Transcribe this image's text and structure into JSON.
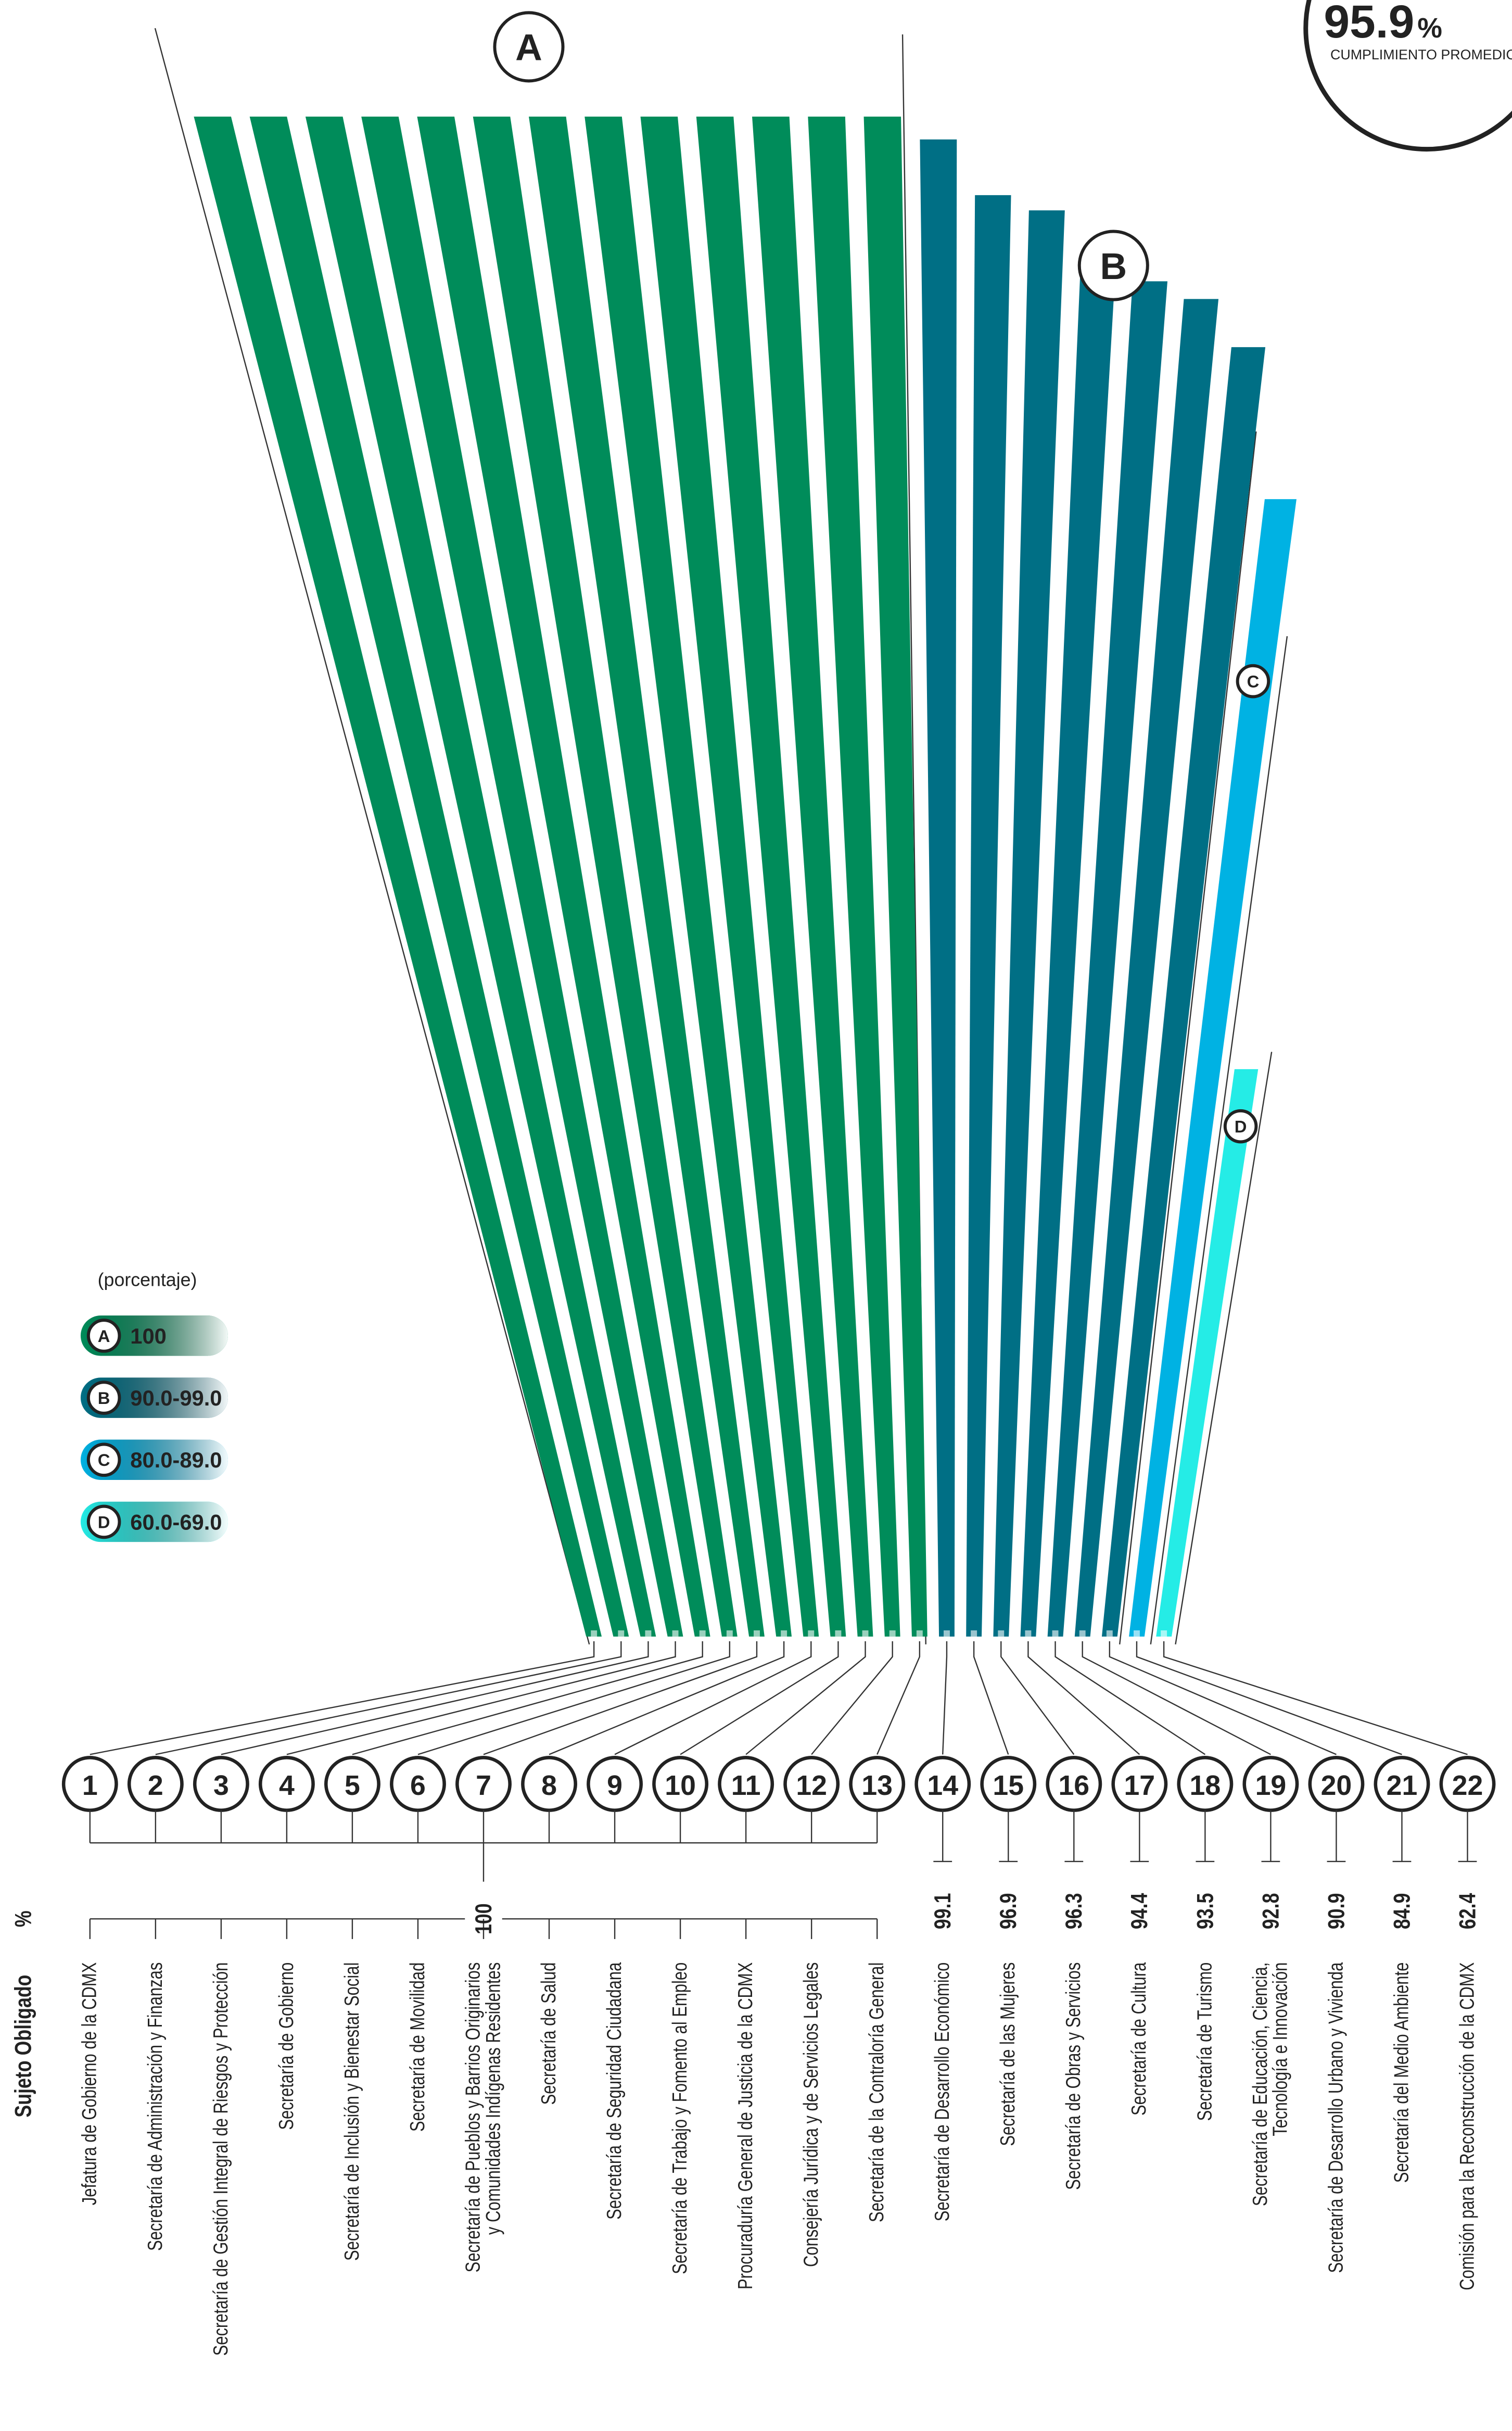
{
  "summary": {
    "value": "95.9",
    "unit": "%",
    "label": "CUMPLIMIENTO PROMEDIO"
  },
  "chart_data": {
    "type": "bar",
    "column_headers": [
      "Sujeto Obligado",
      "%"
    ],
    "ids": [
      1,
      2,
      3,
      4,
      5,
      6,
      7,
      8,
      9,
      10,
      11,
      12,
      13,
      14,
      15,
      16,
      17,
      18,
      19,
      20,
      21,
      22
    ],
    "categories": [
      "Jefatura de Gobierno de la CDMX",
      "Secretaría de Administración y Finanzas",
      "Secretaría de Gestión Integral de Riesgos y Protección",
      "Secretaría de Gobierno",
      "Secretaría de Inclusión y Bienestar Social",
      "Secretaría de Movilidad",
      "Secretaría de Pueblos y Barrios Originarios\ny Comunidades Indígenas Residentes",
      "Secretaría de Salud",
      "Secretaría de Seguridad Ciudadana",
      "Secretaría de Trabajo y Fomento al Empleo",
      "Procuraduría General de Justicia de la CDMX",
      "Consejería Jurídica y de Servicios Legales",
      "Secretaría de la Contraloría General",
      "Secretaría de Desarrollo Económico",
      "Secretaría de las Mujeres",
      "Secretaría de Obras y Servicios",
      "Secretaría de Cultura",
      "Secretaría de Turismo",
      "Secretaría de Educación, Ciencia,\nTecnología e Innovación",
      "Secretaría de Desarrollo Urbano y Vivienda",
      "Secretaría del Medio Ambiente",
      "Comisión para la Reconstrucción de la CDMX"
    ],
    "values": [
      100,
      100,
      100,
      100,
      100,
      100,
      100,
      100,
      100,
      100,
      100,
      100,
      100,
      99.1,
      96.9,
      96.3,
      94.4,
      93.5,
      92.8,
      90.9,
      84.9,
      62.4
    ],
    "colors": [
      "#008c5a",
      "#008c5a",
      "#008c5a",
      "#008c5a",
      "#008c5a",
      "#008c5a",
      "#008c5a",
      "#008c5a",
      "#008c5a",
      "#008c5a",
      "#008c5a",
      "#008c5a",
      "#008c5a",
      "#006f85",
      "#006f85",
      "#006f85",
      "#006f85",
      "#006f85",
      "#006f85",
      "#006f85",
      "#00b2e3",
      "#25ece6"
    ],
    "ylim": [
      40,
      100
    ],
    "legend_title": "(porcentaje)",
    "groups": [
      {
        "letter": "A",
        "range": "100",
        "color": "#008c5a"
      },
      {
        "letter": "B",
        "range": "90.0-99.0",
        "color": "#006f85"
      },
      {
        "letter": "C",
        "range": "80.0-89.0",
        "color": "#00b2e3"
      },
      {
        "letter": "D",
        "range": "60.0-69.0",
        "color": "#25ece6"
      }
    ]
  }
}
